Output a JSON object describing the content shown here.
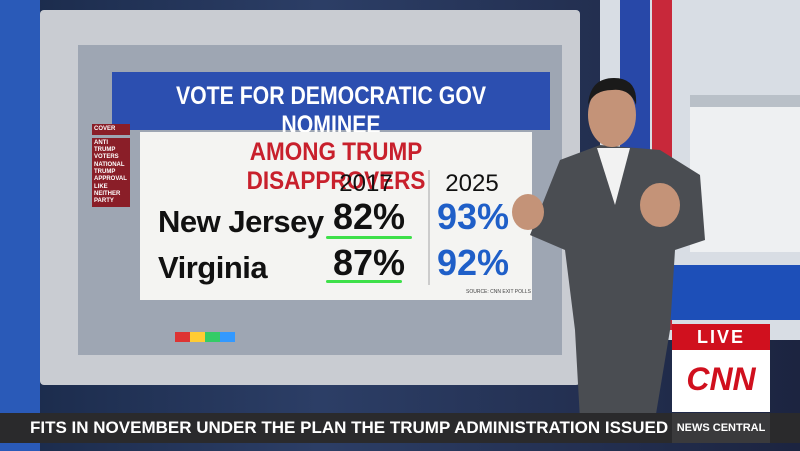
{
  "screen": {
    "title": "VOTE FOR DEMOCRATIC GOV NOMINEE",
    "subtitle": "AMONG TRUMP DISAPPROVERS",
    "tabs": [
      "COVER",
      "ANTI TRUMP VOTERS",
      "NATIONAL TRUMP APPROVAL",
      "LIKE NEITHER PARTY"
    ],
    "table": {
      "columns": [
        "2017",
        "2025"
      ],
      "rows": [
        {
          "label": "New Jersey",
          "values": [
            "82%",
            "93%"
          ]
        },
        {
          "label": "Virginia",
          "values": [
            "87%",
            "92%"
          ]
        }
      ]
    },
    "source": "SOURCE: CNN EXIT POLLS"
  },
  "broadcast": {
    "live": "LIVE",
    "network": "CNN",
    "show": "NEWS CENTRAL",
    "ticker": "FITS IN NOVEMBER UNDER THE PLAN THE TRUMP ADMINISTRATION ISSUED TUESDAY T"
  }
}
